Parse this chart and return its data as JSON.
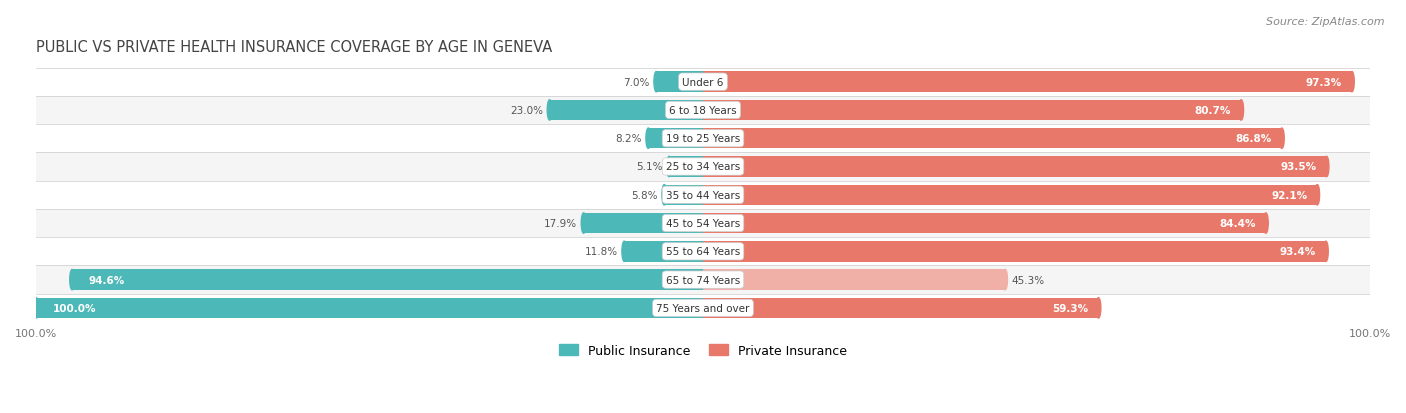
{
  "title": "Public vs Private Health Insurance Coverage by Age in Geneva",
  "source": "Source: ZipAtlas.com",
  "categories": [
    "Under 6",
    "6 to 18 Years",
    "19 to 25 Years",
    "25 to 34 Years",
    "35 to 44 Years",
    "45 to 54 Years",
    "55 to 64 Years",
    "65 to 74 Years",
    "75 Years and over"
  ],
  "public_values": [
    7.0,
    23.0,
    8.2,
    5.1,
    5.8,
    17.9,
    11.8,
    94.6,
    100.0
  ],
  "private_values": [
    97.3,
    80.7,
    86.8,
    93.5,
    92.1,
    84.4,
    93.4,
    45.3,
    59.3
  ],
  "public_color": "#4db8b8",
  "private_color_strong": "#e8796a",
  "private_color_light": "#f0b0a8",
  "bg_color": "#ffffff",
  "row_bg_odd": "#f5f5f5",
  "row_bg_even": "#ffffff",
  "label_dark": "#555555",
  "label_white": "#ffffff",
  "max_pct": 100.0,
  "legend_public": "Public Insurance",
  "legend_private": "Private Insurance",
  "title_color": "#444444",
  "source_color": "#888888"
}
